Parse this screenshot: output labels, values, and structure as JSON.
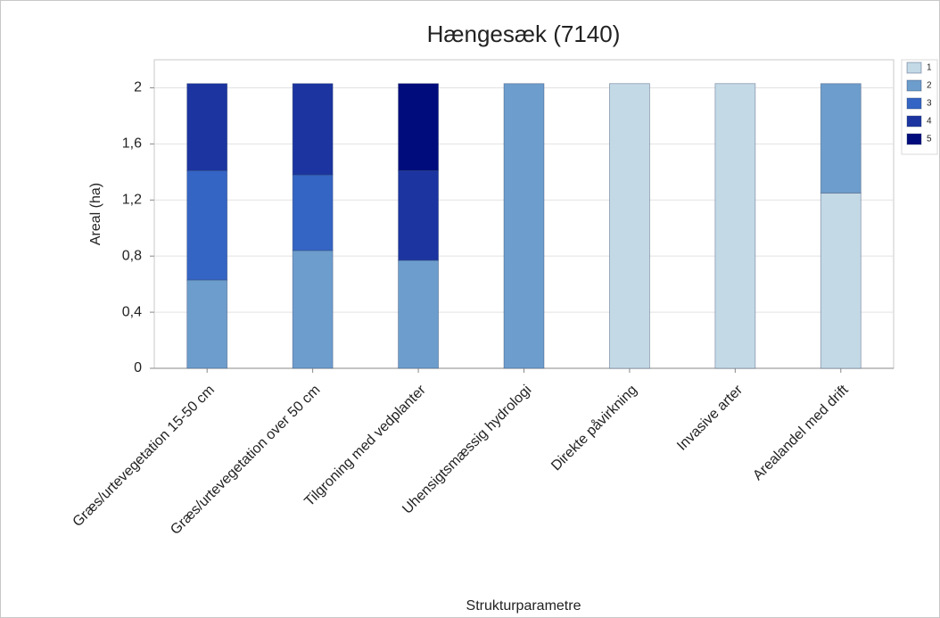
{
  "chart_data": {
    "type": "bar",
    "stacked": true,
    "title": "Hængesæk (7140)",
    "x_label": "Strukturparametre",
    "y_label": "Areal (ha)",
    "categories": [
      "Græs/urtevegetation 15-50 cm",
      "Græs/urtevegetation over 50 cm",
      "Tilgroning med vedplanter",
      "Uhensigtsmæssig hydrologi",
      "Direkte påvirkning",
      "Invasive arter",
      "Arealandel med drift"
    ],
    "series": [
      {
        "name": "1",
        "color": "#c3d9e6",
        "values": [
          null,
          null,
          null,
          null,
          2.03,
          2.03,
          1.25
        ]
      },
      {
        "name": "2",
        "color": "#6d9dcc",
        "values": [
          0.63,
          0.84,
          0.77,
          2.03,
          null,
          null,
          0.78
        ]
      },
      {
        "name": "3",
        "color": "#3464c4",
        "values": [
          0.78,
          0.54,
          null,
          null,
          null,
          null,
          null
        ]
      },
      {
        "name": "4",
        "color": "#1c34a0",
        "values": [
          0.62,
          0.65,
          0.64,
          null,
          null,
          null,
          null
        ]
      },
      {
        "name": "5",
        "color": "#000c7c",
        "values": [
          null,
          null,
          0.62,
          null,
          null,
          null,
          null
        ]
      }
    ],
    "ylim": [
      0,
      2.2
    ],
    "yticks": [
      0,
      {
        "value": 0.4,
        "label": "0,4"
      },
      {
        "value": 0.8,
        "label": "0,8"
      },
      {
        "value": 1.2,
        "label": "1,2"
      },
      {
        "value": 1.6,
        "label": "1,6"
      },
      2
    ],
    "grid": true,
    "legend": "right"
  }
}
